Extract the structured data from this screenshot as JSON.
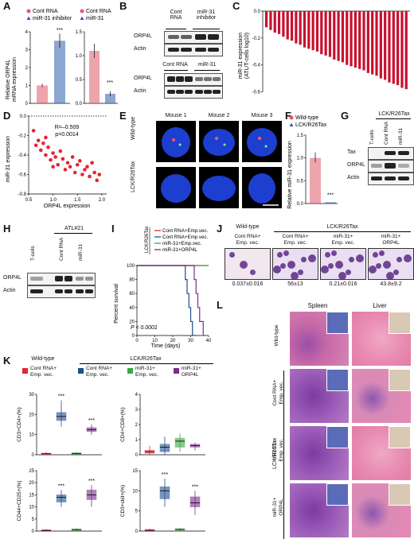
{
  "panels": {
    "A": {
      "letter": "A",
      "legend1": [
        "Cont RNA",
        "miR-31 inhibitor"
      ],
      "legend2": [
        "Cont RNA",
        "miR-31"
      ],
      "ylabel": [
        "Relative ORP4L",
        "mRNA expression"
      ],
      "yticks1": [
        "0",
        "1",
        "2",
        "3",
        "4"
      ],
      "yticks2": [
        "0.0",
        "0.5",
        "1.0",
        "1.5"
      ],
      "sig": "***",
      "colors": {
        "control": "#e05a6a",
        "treatment": "#2e5fa8"
      }
    },
    "B": {
      "letter": "B",
      "top_headers": [
        "Cont RNA",
        "miR-31 inhibitor"
      ],
      "bottom_headers": [
        "Cont RNA",
        "miR-31"
      ],
      "rows": [
        "ORP4L",
        "Actin"
      ]
    },
    "C": {
      "letter": "C",
      "ylabel": [
        "miR-31 expression",
        "(ATL/T-cells log10)"
      ],
      "yticks": [
        "0.0",
        "-0.2",
        "-0.4",
        "-0.6"
      ]
    },
    "D": {
      "letter": "D",
      "stats": [
        "R=–0.509",
        "p=0.0014"
      ],
      "xlabel": "ORP4L expression",
      "ylabel": "miR-31 expression",
      "xticks": [
        "0.5",
        "1.0",
        "1.5",
        "2.0"
      ],
      "yticks": [
        "0.0",
        "-0.2",
        "-0.4",
        "-0.6",
        "-0.8"
      ]
    },
    "E": {
      "letter": "E",
      "cols": [
        "Mouse 1",
        "Mouse 2",
        "Mouse 3"
      ],
      "rows": [
        "Wild-type",
        "LCK/R26Tax"
      ]
    },
    "F": {
      "letter": "F",
      "legend": [
        "Wild-type",
        "LCK/R26Tax"
      ],
      "ylabel": "Relative miR-31 expression",
      "yticks": [
        "0.0",
        "0.5",
        "1.0",
        "1.5"
      ],
      "sig": "***"
    },
    "G": {
      "letter": "G",
      "group": "LCK/R26Tax",
      "cols": [
        "T-cells",
        "Cont RNA",
        "miR-31"
      ],
      "rows": [
        "Tax",
        "ORP4L",
        "Actin"
      ]
    },
    "H": {
      "letter": "H",
      "group": "ATL#21",
      "cols": [
        "T-cells",
        "Cont RNA",
        "miR-31"
      ],
      "rows": [
        "ORP4L",
        "Actin"
      ]
    },
    "I": {
      "letter": "I",
      "group": "LCK/R26Tax",
      "legend": [
        "Cont RNA+Emp.vec.",
        "Cont RNA+Emp.vec.",
        "miR-31+Emp.vec.",
        "miR-31+ORP4L"
      ],
      "legend_colors": [
        "#e8232f",
        "#1f4e8c",
        "#3aa845",
        "#7b2d8e"
      ],
      "ylabel": "Percent survival",
      "xlabel": "Time (days)",
      "yticks": [
        "0",
        "20",
        "40",
        "60",
        "80",
        "100"
      ],
      "xticks": [
        "0",
        "10",
        "20",
        "30",
        "40"
      ],
      "pval": "P < 0.0001"
    },
    "J": {
      "letter": "J",
      "group_wt": "Wild-type",
      "group_tax": "LCK/R26Tax",
      "cols": [
        "Cont RNA+\nEmp. vec.",
        "Cont RNA+\nEmp. vec.",
        "miR-31+\nEmp. vec.",
        "miR-31+\nORP4L"
      ],
      "values": [
        "0.037±0.016",
        "56±13",
        "0.21±0.016",
        "43.8±9.2"
      ]
    },
    "K": {
      "letter": "K",
      "group_wt": "Wild-type",
      "group_tax": "LCK/R26Tax",
      "legend": [
        "Cont RNA+\nEmp. vec.",
        "Cont RNA+\nEmp. vec.",
        "miR-31+\nEmp. vec.",
        "miR-31+\nORP4L"
      ],
      "colors": [
        "#e8232f",
        "#1f4e8c",
        "#3aa845",
        "#7b2d8e"
      ],
      "plots": [
        {
          "ylabel": "CD3+CD4+(%)",
          "yticks": [
            "0",
            "10",
            "20",
            "30"
          ],
          "sig": [
            "***",
            "***"
          ]
        },
        {
          "ylabel": "CD4+CD8+(%)",
          "yticks": [
            "0",
            "1",
            "2",
            "3",
            "4"
          ],
          "sig": []
        },
        {
          "ylabel": "CD44+CD25+(%)",
          "yticks": [
            "0",
            "5",
            "10",
            "15",
            "20",
            "25"
          ],
          "sig": [
            "***",
            "***"
          ]
        },
        {
          "ylabel": "CD3+ckit+(%)",
          "yticks": [
            "0",
            "5",
            "10",
            "15"
          ],
          "sig": [
            "***",
            "***"
          ]
        }
      ]
    },
    "L": {
      "letter": "L",
      "cols": [
        "Spleen",
        "Liver"
      ],
      "rows": [
        "Wild-type",
        "Cont RNA+\nEmp. vec.",
        "miR-31+\nEmp. vec.",
        "miR-31+\nORP4L"
      ],
      "group_tax": "LCK/R26Tax"
    }
  }
}
